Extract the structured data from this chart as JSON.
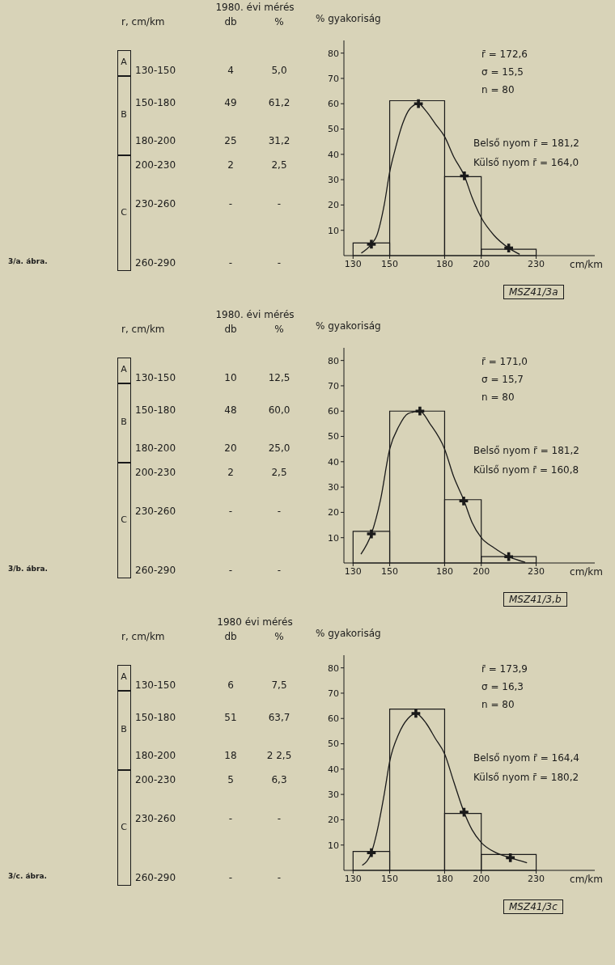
{
  "chart_data": [
    {
      "type": "histogram",
      "xlabel": "cm/km",
      "ylabel": "% gyakoriság",
      "bins": [
        130,
        150,
        180,
        200,
        230
      ],
      "values": [
        5.0,
        61.2,
        31.2,
        2.5
      ],
      "color": "#1a1a1a",
      "xlim": [
        125,
        262
      ],
      "xticks": [
        130,
        150,
        180,
        200,
        230
      ],
      "ylim": [
        0,
        85
      ],
      "yticks": [
        10,
        20,
        30,
        40,
        50,
        60,
        70,
        80
      ],
      "series": [
        {
          "type": "line",
          "color": "#1a1a1a",
          "x": [
            134.5,
            140,
            143,
            147,
            150,
            153,
            157,
            161,
            165.7,
            170,
            175,
            180,
            185,
            190.8,
            195,
            200,
            207,
            215,
            221
          ],
          "values": [
            1,
            4.5,
            8,
            20,
            33,
            42,
            52,
            58,
            60,
            57,
            52,
            47,
            39,
            31.5,
            23,
            15,
            8,
            3,
            0.5
          ]
        },
        {
          "type": "scatter",
          "color": "#1a1a1a",
          "marker": "cross",
          "x": [
            140,
            165.7,
            190.8,
            215
          ],
          "values": [
            4.5,
            60,
            31.5,
            3
          ]
        }
      ],
      "annotations": [
        "1980. évi mérés",
        "r, cm/km",
        "db",
        "%",
        "A",
        "B",
        "C",
        "130-150",
        "4",
        "5,0",
        "150-180",
        "49",
        "61,2",
        "180-200",
        "25",
        "31,2",
        "200-230",
        "2",
        "2,5",
        "230-260",
        "-",
        "-",
        "260-290",
        "-",
        "-",
        "3/a. ábra.",
        "r̄ = 172,6",
        "σ = 15,5",
        "n = 80",
        "Belső nyom r̄ = 181,2",
        "Külső nyom r̄ = 164,0",
        "MSZ41/3a"
      ]
    },
    {
      "type": "histogram",
      "xlabel": "cm/km",
      "ylabel": "% gyakoriság",
      "bins": [
        130,
        150,
        180,
        200,
        230
      ],
      "values": [
        12.5,
        60.0,
        25.0,
        2.5
      ],
      "color": "#1a1a1a",
      "xlim": [
        125,
        262
      ],
      "xticks": [
        130,
        150,
        180,
        200,
        230
      ],
      "ylim": [
        0,
        85
      ],
      "yticks": [
        10,
        20,
        30,
        40,
        50,
        60,
        70,
        80
      ],
      "series": [
        {
          "type": "line",
          "color": "#1a1a1a",
          "x": [
            134.3,
            140,
            145,
            150,
            155,
            160,
            166.5,
            172,
            180,
            185,
            190.4,
            195,
            200,
            207,
            215,
            224
          ],
          "values": [
            3.5,
            11.5,
            25,
            45,
            54,
            59,
            60,
            55,
            45,
            34,
            25,
            16,
            10,
            6,
            2.5,
            0.3
          ]
        },
        {
          "type": "scatter",
          "color": "#1a1a1a",
          "marker": "cross",
          "x": [
            140,
            166.5,
            190.4,
            215
          ],
          "values": [
            11.5,
            60,
            24.5,
            2.5
          ]
        }
      ],
      "annotations": [
        "1980. évi mérés",
        "r, cm/km",
        "db",
        "%",
        "A",
        "B",
        "C",
        "130-150",
        "10",
        "12,5",
        "150-180",
        "48",
        "60,0",
        "180-200",
        "20",
        "25,0",
        "200-230",
        "2",
        "2,5",
        "230-260",
        "-",
        "-",
        "260-290",
        "-",
        "-",
        "3/b. ábra.",
        "r̄ = 171,0",
        "σ = 15,7",
        "n = 80",
        "Belső nyom r̄ = 181,2",
        "Külső nyom r̄ = 160,8",
        "MSZ41/3,b"
      ]
    },
    {
      "type": "histogram",
      "xlabel": "cm/km",
      "ylabel": "% gyakoriság",
      "bins": [
        130,
        150,
        180,
        200,
        230
      ],
      "values": [
        7.5,
        63.7,
        22.5,
        6.3
      ],
      "color": "#1a1a1a",
      "xlim": [
        125,
        262
      ],
      "xticks": [
        130,
        150,
        180,
        200,
        230
      ],
      "ylim": [
        0,
        85
      ],
      "yticks": [
        10,
        20,
        30,
        40,
        50,
        60,
        70,
        80
      ],
      "series": [
        {
          "type": "line",
          "color": "#1a1a1a",
          "x": [
            135,
            140,
            143,
            147,
            150,
            155,
            160,
            164.3,
            170,
            175,
            180,
            185,
            190.6,
            195,
            200,
            208,
            215.9,
            225
          ],
          "values": [
            2,
            7,
            15,
            30,
            43,
            54,
            60,
            62,
            58,
            52,
            46,
            35,
            23,
            16,
            11,
            7,
            5,
            3
          ]
        },
        {
          "type": "scatter",
          "color": "#1a1a1a",
          "marker": "cross",
          "x": [
            140,
            164.3,
            190.6,
            215.9
          ],
          "values": [
            7,
            62,
            23,
            5
          ]
        }
      ],
      "annotations": [
        "1980 évi mérés",
        "r, cm/km",
        "db",
        "%",
        "A",
        "B",
        "C",
        "130-150",
        "6",
        "7,5",
        "150-180",
        "51",
        "63,7",
        "180-200",
        "18",
        "2 2,5",
        "200-230",
        "5",
        "6,3",
        "230-260",
        "-",
        "-",
        "260-290",
        "-",
        "-",
        "3/c. ábra.",
        "r̄ = 173,9",
        "σ = 16,3",
        "n = 80",
        "Belső nyom r̄ = 164,4",
        "Külső nyom r̄ = 180,2",
        "MSZ41/3c"
      ]
    }
  ]
}
